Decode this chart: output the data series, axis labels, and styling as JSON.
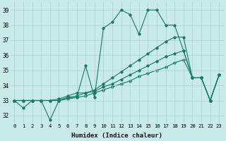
{
  "xlabel": "Humidex (Indice chaleur)",
  "bg_color": "#c8eae8",
  "grid_color": "#b0cccc",
  "line_color": "#1a7a6a",
  "xlim": [
    -0.5,
    23.5
  ],
  "ylim": [
    31.5,
    39.5
  ],
  "xticks": [
    0,
    1,
    2,
    3,
    4,
    5,
    6,
    7,
    8,
    9,
    10,
    11,
    12,
    13,
    14,
    15,
    16,
    17,
    18,
    19,
    20,
    21,
    22,
    23
  ],
  "yticks": [
    32,
    33,
    34,
    35,
    36,
    37,
    38,
    39
  ],
  "line1": [
    33.0,
    32.5,
    33.0,
    33.0,
    31.7,
    33.0,
    33.2,
    33.2,
    35.3,
    33.2,
    37.8,
    38.2,
    39.0,
    38.7,
    37.4,
    39.0,
    39.0,
    38.0,
    38.0,
    36.3,
    34.5,
    34.5,
    33.0,
    34.7
  ],
  "line2": [
    33.0,
    33.0,
    33.0,
    33.0,
    33.0,
    33.1,
    33.3,
    33.5,
    33.5,
    33.7,
    34.1,
    34.5,
    34.9,
    35.3,
    35.7,
    36.1,
    36.5,
    36.9,
    37.2,
    37.2,
    34.5,
    34.5,
    33.0,
    34.7
  ],
  "line3": [
    33.0,
    33.0,
    33.0,
    33.0,
    33.0,
    33.0,
    33.2,
    33.3,
    33.5,
    33.6,
    33.9,
    34.1,
    34.4,
    34.7,
    35.0,
    35.3,
    35.6,
    35.9,
    36.1,
    36.3,
    34.5,
    34.5,
    33.0,
    34.7
  ],
  "line4": [
    33.0,
    33.0,
    33.0,
    33.0,
    33.0,
    33.0,
    33.1,
    33.2,
    33.3,
    33.5,
    33.7,
    33.9,
    34.1,
    34.3,
    34.6,
    34.8,
    35.0,
    35.2,
    35.5,
    35.7,
    34.5,
    34.5,
    33.0,
    34.7
  ]
}
